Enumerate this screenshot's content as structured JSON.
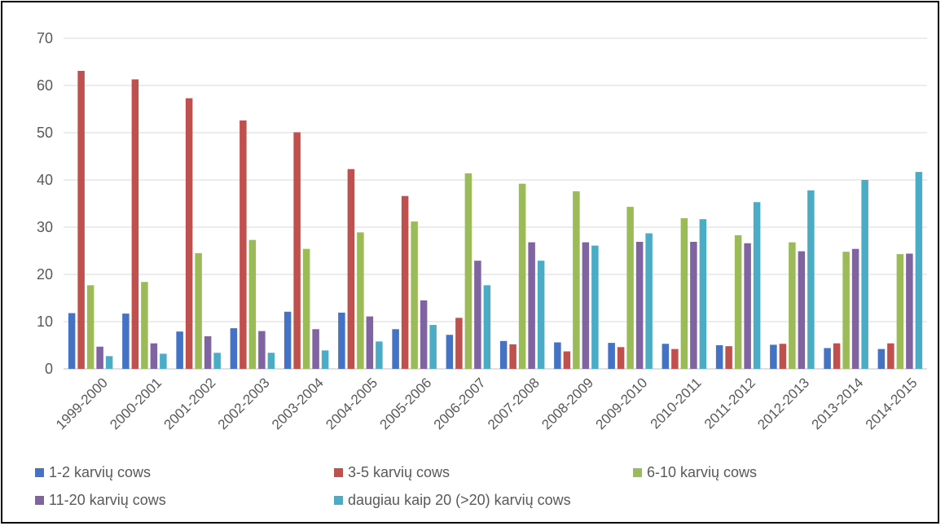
{
  "chart_data": {
    "type": "bar",
    "ylim": [
      0,
      70
    ],
    "yticks": [
      0,
      10,
      20,
      30,
      40,
      50,
      60,
      70
    ],
    "grid": true,
    "legend_position": "bottom",
    "categories": [
      "1999-2000",
      "2000-2001",
      "2001-2002",
      "2002-2003",
      "2003-2004",
      "2004-2005",
      "2005-2006",
      "2006-2007",
      "2007-2008",
      "2008-2009",
      "2009-2010",
      "2010-2011",
      "2011-2012",
      "2012-2013",
      "2013-2014",
      "2014-2015"
    ],
    "series": [
      {
        "name": "1-2 karvių cows",
        "color": "#4472C4",
        "values": [
          11.8,
          11.7,
          7.9,
          8.6,
          12.1,
          11.9,
          8.4,
          7.2,
          5.9,
          5.6,
          5.5,
          5.3,
          5.0,
          5.1,
          4.4,
          4.2
        ]
      },
      {
        "name": "3-5 karvių cows",
        "color": "#C0504D",
        "values": [
          63.1,
          61.3,
          57.3,
          52.6,
          50.1,
          42.3,
          36.6,
          10.8,
          5.2,
          3.7,
          4.6,
          4.2,
          4.8,
          5.3,
          5.4,
          5.4
        ]
      },
      {
        "name": "6-10 karvių cows",
        "color": "#9BBB59",
        "values": [
          17.7,
          18.4,
          24.5,
          27.3,
          25.4,
          28.9,
          31.2,
          41.4,
          39.2,
          37.6,
          34.3,
          31.9,
          28.3,
          26.8,
          24.8,
          24.3
        ]
      },
      {
        "name": "11-20 karvių cows",
        "color": "#8064A2",
        "values": [
          4.7,
          5.4,
          6.9,
          8.0,
          8.4,
          11.1,
          14.5,
          22.9,
          26.8,
          26.8,
          26.9,
          26.9,
          26.6,
          24.9,
          25.4,
          24.4
        ]
      },
      {
        "name": "daugiau kaip 20 (>20) karvių cows",
        "color": "#4BACC6",
        "values": [
          2.7,
          3.2,
          3.4,
          3.4,
          3.9,
          5.8,
          9.3,
          17.7,
          22.9,
          26.1,
          28.7,
          31.7,
          35.3,
          37.8,
          40.0,
          41.7
        ]
      }
    ]
  }
}
